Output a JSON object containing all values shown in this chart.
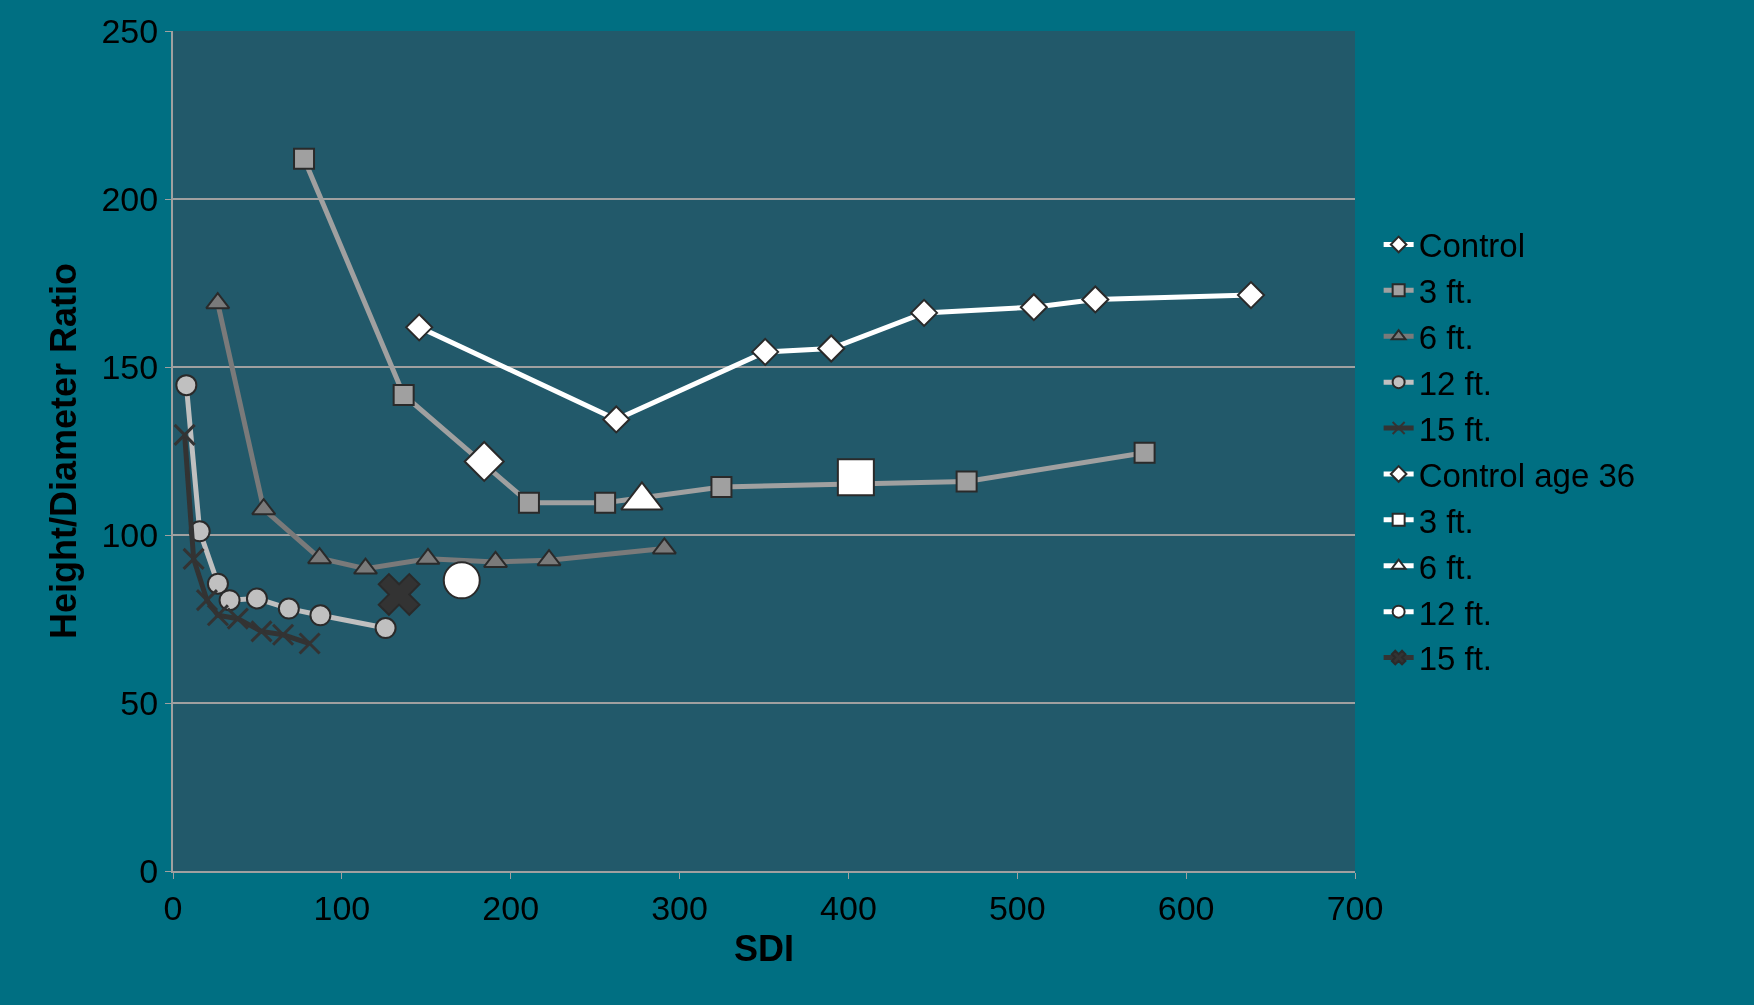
{
  "chart_data": {
    "type": "line",
    "xlabel": "SDI",
    "ylabel": "Height/Diameter Ratio",
    "xlim": [
      0,
      700
    ],
    "xticks": [
      0,
      100,
      200,
      300,
      400,
      500,
      600,
      700
    ],
    "ylim": [
      0,
      250
    ],
    "yticks": [
      0,
      50,
      100,
      150,
      200,
      250
    ],
    "grid": "y",
    "legend": "right",
    "series": [
      {
        "name": "Control",
        "color": "#ffffff",
        "marker": "diamond",
        "x": [
          145.8,
          262.5,
          350.7,
          389.8,
          444.8,
          509.8,
          546.2,
          638.4
        ],
        "values": [
          161.8,
          134.4,
          154.5,
          155.5,
          166.1,
          167.8,
          170.1,
          171.4
        ]
      },
      {
        "name": "3 ft.",
        "color": "#a0a0a0",
        "marker": "square",
        "x": [
          77.6,
          136.6,
          210.8,
          255.9,
          324.8,
          470,
          575.4
        ],
        "values": [
          212,
          141.7,
          109.6,
          109.6,
          114.3,
          115.9,
          124.5
        ]
      },
      {
        "name": "6 ft.",
        "color": "#7a7a7a",
        "marker": "triangle",
        "x": [
          26.5,
          53.7,
          86.8,
          114,
          151,
          191,
          222.7,
          291
        ],
        "values": [
          169,
          107.7,
          93.1,
          90,
          92.9,
          92,
          92.5,
          96
        ]
      },
      {
        "name": "12 ft.",
        "color": "#c0c0c0",
        "marker": "circle",
        "x": [
          7.9,
          15.8,
          26.6,
          33.5,
          49.7,
          68.6,
          87.3,
          125.9
        ],
        "values": [
          144.6,
          101.1,
          85.5,
          80.6,
          81.1,
          78.1,
          76.1,
          72.3
        ]
      },
      {
        "name": "15 ft.",
        "color": "#333333",
        "marker": "cross",
        "x": [
          6.9,
          12.2,
          20.1,
          26.6,
          38.4,
          52.4,
          65.2,
          80.9
        ],
        "values": [
          129.8,
          92.9,
          80.6,
          76.1,
          75.1,
          71.3,
          70.3,
          67.7
        ]
      },
      {
        "name": "Control age 36",
        "color": "#ffffff",
        "marker": "diamond",
        "x": [
          184.3
        ],
        "values": [
          121.9
        ]
      },
      {
        "name": "3 ft.",
        "color": "#ffffff",
        "marker": "square",
        "x": [
          404.4
        ],
        "values": [
          117.2
        ]
      },
      {
        "name": "6 ft.",
        "color": "#ffffff",
        "marker": "triangle",
        "x": [
          277.7
        ],
        "values": [
          110.3
        ]
      },
      {
        "name": "12 ft.",
        "color": "#ffffff",
        "marker": "circle",
        "x": [
          171
        ],
        "values": [
          86.5
        ]
      },
      {
        "name": "15 ft.",
        "color": "#333333",
        "marker": "cross",
        "x": [
          133.9
        ],
        "values": [
          82.3
        ]
      }
    ]
  }
}
